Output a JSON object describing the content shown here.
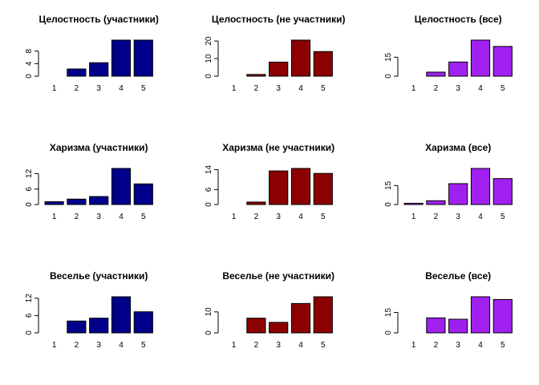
{
  "chart_data": [
    {
      "type": "bar",
      "title": "Целостность  (участники)",
      "categories": [
        "1",
        "2",
        "3",
        "4",
        "5"
      ],
      "values": [
        0,
        2.3,
        4.3,
        11.5,
        11.5
      ],
      "color": "#00008b",
      "ylim": [
        0,
        11.5
      ],
      "yticks": [
        0,
        4,
        8
      ]
    },
    {
      "type": "bar",
      "title": "Целостность  (не участники)",
      "categories": [
        "1",
        "2",
        "3",
        "4",
        "5"
      ],
      "values": [
        0,
        1,
        8,
        20.5,
        14
      ],
      "color": "#8b0000",
      "ylim": [
        0,
        20.5
      ],
      "yticks": [
        0,
        10,
        20
      ]
    },
    {
      "type": "bar",
      "title": "Целостность  (все)",
      "categories": [
        "1",
        "2",
        "3",
        "4",
        "5"
      ],
      "values": [
        0,
        3.2,
        11.2,
        28.5,
        23.5
      ],
      "color": "#a020f0",
      "ylim": [
        0,
        28.5
      ],
      "yticks": [
        0,
        15
      ]
    },
    {
      "type": "bar",
      "title": "Харизма  (участники)",
      "categories": [
        "1",
        "2",
        "3",
        "4",
        "5"
      ],
      "values": [
        1.1,
        2.1,
        3.1,
        14,
        8
      ],
      "color": "#00008b",
      "ylim": [
        0,
        14
      ],
      "yticks": [
        0,
        6,
        12
      ]
    },
    {
      "type": "bar",
      "title": "Харизма  (не участники)",
      "categories": [
        "1",
        "2",
        "3",
        "4",
        "5"
      ],
      "values": [
        0,
        1,
        13.5,
        14.5,
        12.5
      ],
      "color": "#8b0000",
      "ylim": [
        0,
        14.5
      ],
      "yticks": [
        0,
        6,
        14
      ]
    },
    {
      "type": "bar",
      "title": "Харизма  (все)",
      "categories": [
        "1",
        "2",
        "3",
        "4",
        "5"
      ],
      "values": [
        1,
        3,
        16.5,
        28.5,
        20.5
      ],
      "color": "#a020f0",
      "ylim": [
        0,
        28.5
      ],
      "yticks": [
        0,
        15
      ]
    },
    {
      "type": "bar",
      "title": "Веселье  (участники)",
      "categories": [
        "1",
        "2",
        "3",
        "4",
        "5"
      ],
      "values": [
        0,
        4.1,
        5.1,
        12.5,
        7.3
      ],
      "color": "#00008b",
      "ylim": [
        0,
        12.5
      ],
      "yticks": [
        0,
        6,
        12
      ]
    },
    {
      "type": "bar",
      "title": "Веселье  (не участники)",
      "categories": [
        "1",
        "2",
        "3",
        "4",
        "5"
      ],
      "values": [
        0,
        7,
        5,
        14,
        17.2
      ],
      "color": "#8b0000",
      "ylim": [
        0,
        17.2
      ],
      "yticks": [
        0,
        10
      ]
    },
    {
      "type": "bar",
      "title": "Веселье  (все)",
      "categories": [
        "1",
        "2",
        "3",
        "4",
        "5"
      ],
      "values": [
        0,
        11,
        10,
        26.5,
        24.5
      ],
      "color": "#a020f0",
      "ylim": [
        0,
        26.5
      ],
      "yticks": [
        0,
        15
      ]
    }
  ]
}
